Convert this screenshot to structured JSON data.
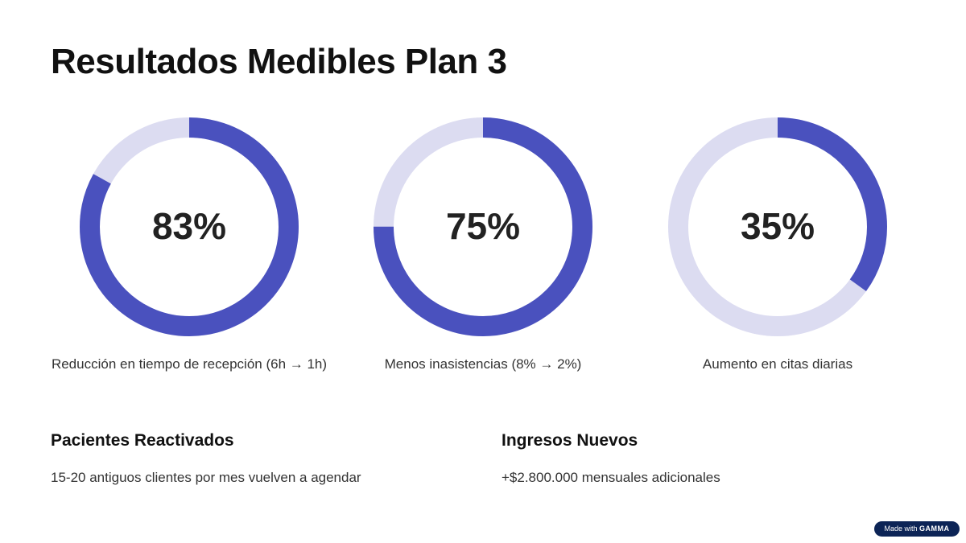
{
  "title": "Resultados Medibles Plan 3",
  "chart_data": {
    "type": "pie",
    "subtype": "donut-progress",
    "colors": {
      "fill": "#4a51be",
      "track": "#dcdcf1"
    },
    "items": [
      {
        "value": 83,
        "label": "83%",
        "caption": "Reducción en tiempo de recepción (6h → 1h)"
      },
      {
        "value": 75,
        "label": "75%",
        "caption": "Menos inasistencias (8% → 2%)"
      },
      {
        "value": 35,
        "label": "35%",
        "caption": "Aumento en citas diarias"
      }
    ]
  },
  "sections": [
    {
      "heading": "Pacientes Reactivados",
      "text": "15-20 antiguos clientes por mes vuelven a agendar"
    },
    {
      "heading": "Ingresos Nuevos",
      "text": "+$2.800.000 mensuales adicionales"
    }
  ],
  "badge": {
    "prefix": "Made with",
    "brand": "GAMMA"
  }
}
